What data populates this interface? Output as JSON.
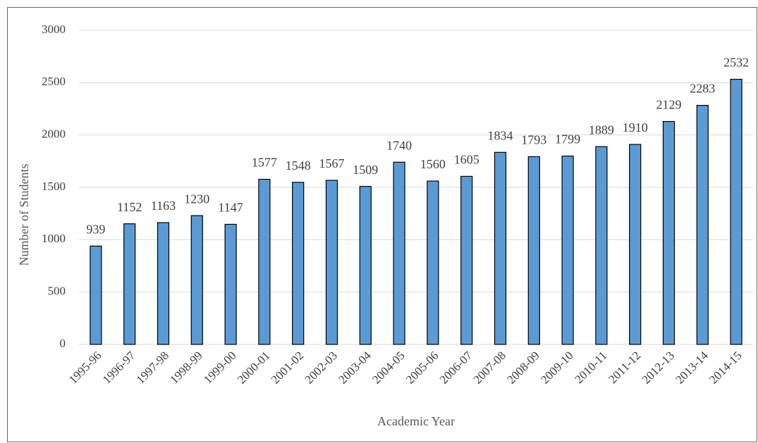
{
  "chart_data": {
    "type": "bar",
    "x_label": "Academic Year",
    "y_label": "Number of Students",
    "categories": [
      "1995-96",
      "1996-97",
      "1997-98",
      "1998-99",
      "1999-00",
      "2000-01",
      "2001-02",
      "2002-03",
      "2003-04",
      "2004-05",
      "2005-06",
      "2006-07",
      "2007-08",
      "2008-09",
      "2009-10",
      "2010-11",
      "2011-12",
      "2012-13",
      "2013-14",
      "2014-15"
    ],
    "values": [
      939,
      1152,
      1163,
      1230,
      1147,
      1577,
      1548,
      1567,
      1509,
      1740,
      1560,
      1605,
      1834,
      1793,
      1799,
      1889,
      1910,
      2129,
      2283,
      2532
    ],
    "color": "#5b9bd5",
    "ylim": [
      0,
      3000
    ],
    "yticks": [
      0,
      500,
      1000,
      1500,
      2000,
      2500,
      3000
    ],
    "grid": true
  }
}
